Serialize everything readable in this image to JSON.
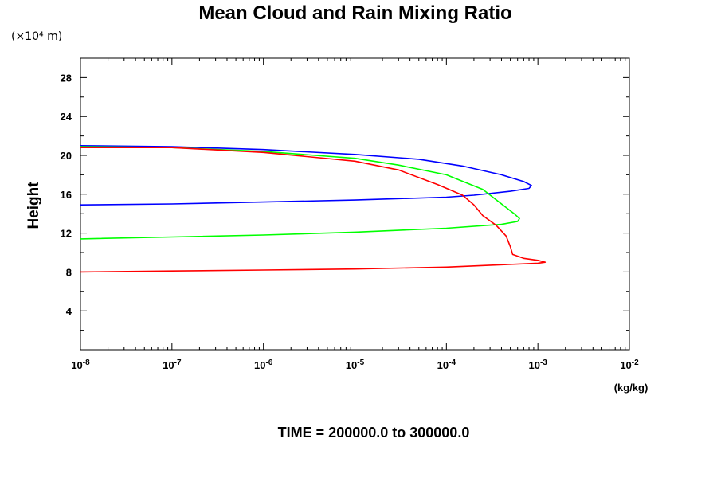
{
  "chart_data": {
    "type": "line",
    "title": "Mean Cloud and Rain Mixing Ratio",
    "y_units_label": "(×10⁴ m)",
    "ylabel": "Height",
    "xlabel": "(kg/kg)",
    "x_scale": "log",
    "xlim": [
      1e-08,
      0.01
    ],
    "ylim": [
      0,
      30
    ],
    "x_ticks": [
      {
        "base": "10",
        "exp": "-8"
      },
      {
        "base": "10",
        "exp": "-7"
      },
      {
        "base": "10",
        "exp": "-6"
      },
      {
        "base": "10",
        "exp": "-5"
      },
      {
        "base": "10",
        "exp": "-4"
      },
      {
        "base": "10",
        "exp": "-3"
      },
      {
        "base": "10",
        "exp": "-2"
      }
    ],
    "y_ticks": [
      "4",
      "8",
      "12",
      "16",
      "20",
      "24",
      "28"
    ],
    "footer": "TIME = 200000.0 to 300000.0",
    "series": [
      {
        "color": "#0000ff",
        "points": [
          [
            1e-08,
            21.0
          ],
          [
            1e-07,
            20.9
          ],
          [
            1e-06,
            20.6
          ],
          [
            1e-05,
            20.1
          ],
          [
            5e-05,
            19.6
          ],
          [
            0.00015,
            18.9
          ],
          [
            0.0004,
            18.0
          ],
          [
            0.0007,
            17.3
          ],
          [
            0.00085,
            16.9
          ],
          [
            0.0008,
            16.6
          ],
          [
            0.0005,
            16.3
          ],
          [
            0.0002,
            15.9
          ],
          [
            0.0001,
            15.7
          ],
          [
            1e-05,
            15.4
          ],
          [
            1e-06,
            15.2
          ],
          [
            1e-07,
            15.0
          ],
          [
            1e-08,
            14.9
          ]
        ]
      },
      {
        "color": "#00ff00",
        "points": [
          [
            1e-08,
            20.9
          ],
          [
            1e-07,
            20.8
          ],
          [
            1e-06,
            20.4
          ],
          [
            1e-05,
            19.7
          ],
          [
            3e-05,
            19.0
          ],
          [
            0.0001,
            18.0
          ],
          [
            0.00025,
            16.5
          ],
          [
            0.0004,
            15.0
          ],
          [
            0.00055,
            14.0
          ],
          [
            0.00063,
            13.5
          ],
          [
            0.0006,
            13.2
          ],
          [
            0.0004,
            12.9
          ],
          [
            0.0001,
            12.5
          ],
          [
            1e-05,
            12.1
          ],
          [
            1e-06,
            11.8
          ],
          [
            1e-07,
            11.6
          ],
          [
            1e-08,
            11.4
          ]
        ]
      },
      {
        "color": "#ff0000",
        "points": [
          [
            1e-08,
            20.8
          ],
          [
            1e-07,
            20.8
          ],
          [
            1e-06,
            20.3
          ],
          [
            1e-05,
            19.4
          ],
          [
            3e-05,
            18.5
          ],
          [
            8e-05,
            17.0
          ],
          [
            0.00015,
            15.9
          ],
          [
            0.0002,
            14.9
          ],
          [
            0.00025,
            13.8
          ],
          [
            0.00035,
            12.8
          ],
          [
            0.00045,
            11.7
          ],
          [
            0.0005,
            10.6
          ],
          [
            0.00053,
            9.8
          ],
          [
            0.0007,
            9.4
          ],
          [
            0.001,
            9.2
          ],
          [
            0.0012,
            9.0
          ],
          [
            0.001,
            8.9
          ],
          [
            0.0001,
            8.5
          ],
          [
            1e-05,
            8.3
          ],
          [
            1e-06,
            8.2
          ],
          [
            1e-07,
            8.1
          ],
          [
            1e-08,
            8.0
          ]
        ]
      }
    ]
  }
}
